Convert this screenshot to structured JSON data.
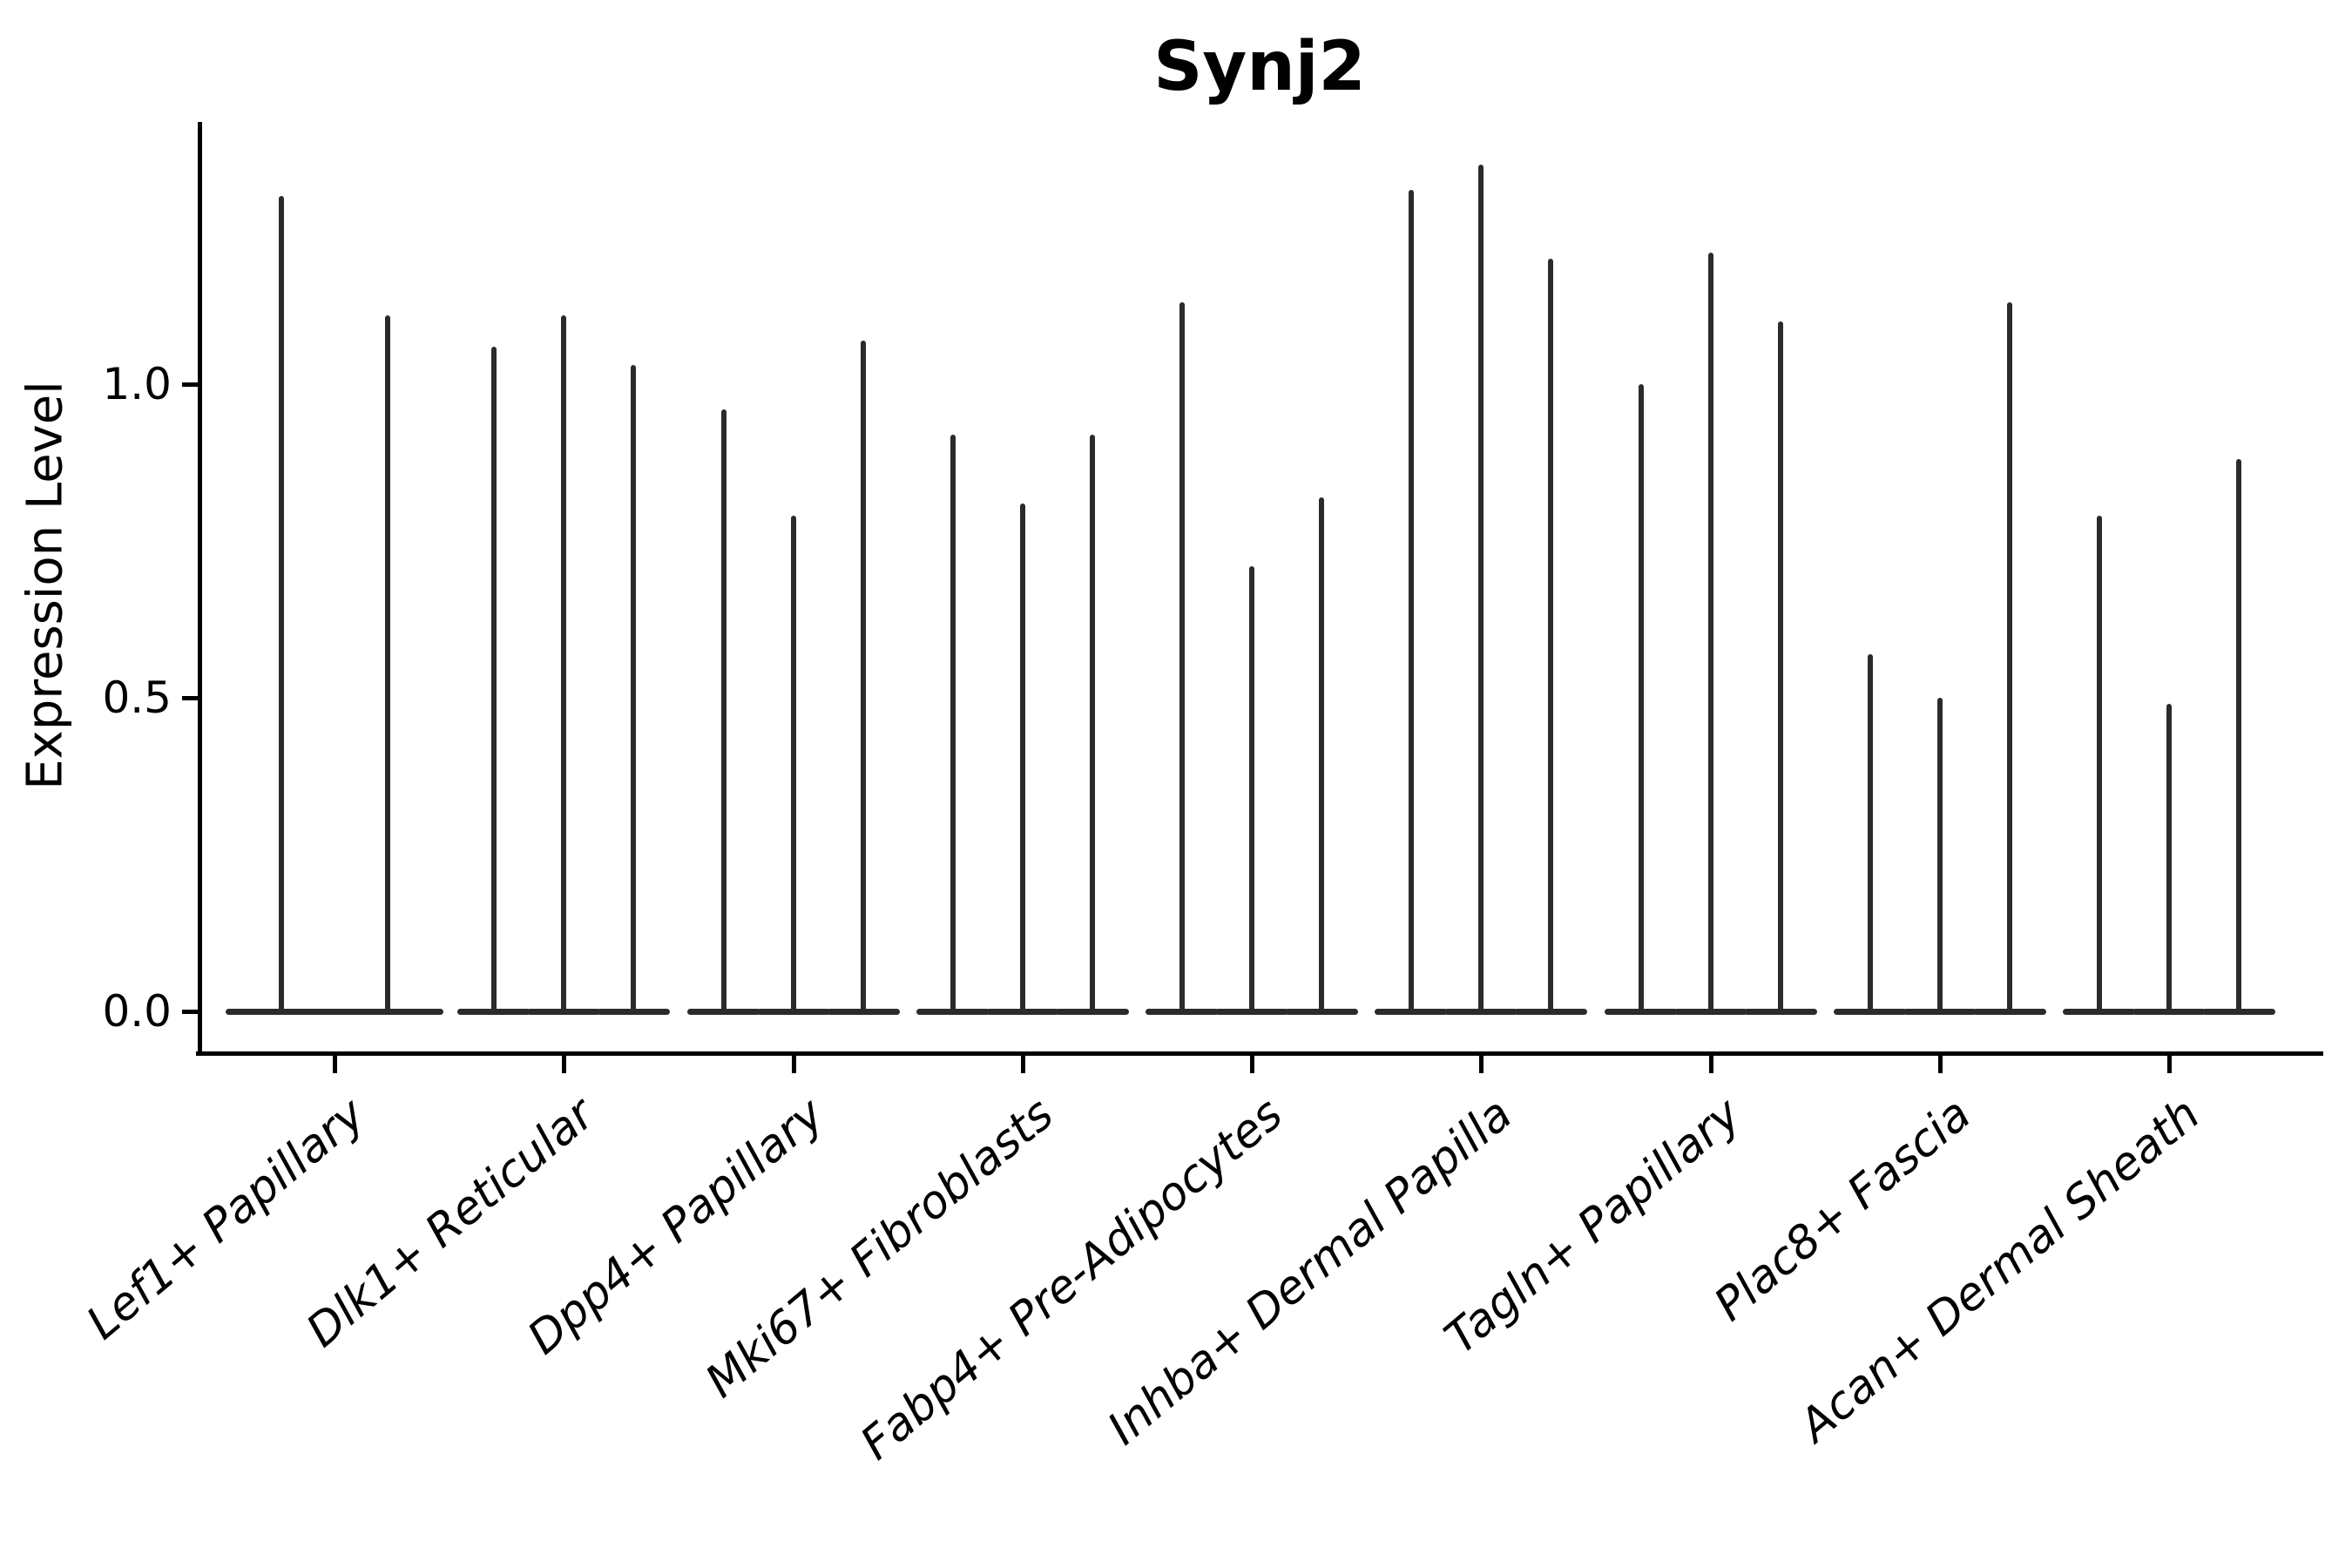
{
  "chart_data": {
    "type": "violin",
    "title": "Synj2",
    "ylabel": "Expression Level",
    "xlabel": "",
    "yticks": [
      {
        "value": 0.0,
        "label": "0.0"
      },
      {
        "value": 0.5,
        "label": "0.5"
      },
      {
        "value": 1.0,
        "label": "1.0"
      }
    ],
    "ylim": [
      -0.07,
      1.42
    ],
    "grid": false,
    "legend": "none",
    "description": "Violin plot of Synj2 expression; each category shows 2-3 very thin violins (spikes) rising from a wide flat base at 0, indicating most cells at zero expression with a thin tail up to the max.",
    "groups": [
      {
        "label": "Lef1+ Papillary",
        "violin_max": [
          1.3,
          1.11
        ]
      },
      {
        "label": "Dlk1+ Reticular",
        "violin_max": [
          1.06,
          1.11,
          1.03
        ]
      },
      {
        "label": "Dpp4+ Papillary",
        "violin_max": [
          0.96,
          0.79,
          1.07
        ]
      },
      {
        "label": "Mki67+ Fibroblasts",
        "violin_max": [
          0.92,
          0.81,
          0.92
        ]
      },
      {
        "label": "Fabp4+ Pre-Adipocytes",
        "violin_max": [
          1.13,
          0.71,
          0.82
        ]
      },
      {
        "label": "Inhba+ Dermal Papilla",
        "violin_max": [
          1.31,
          1.35,
          1.2
        ]
      },
      {
        "label": "Tagln+ Papillary",
        "violin_max": [
          1.0,
          1.21,
          1.1
        ]
      },
      {
        "label": "Plac8+ Fascia",
        "violin_max": [
          0.57,
          0.5,
          1.13
        ]
      },
      {
        "label": "Acan+ Dermal Sheath",
        "violin_max": [
          0.79,
          0.49,
          0.88
        ]
      }
    ],
    "colors": {
      "violin": "#2b2b2b",
      "axis": "#000000",
      "text": "#000000",
      "background": "#ffffff"
    }
  }
}
